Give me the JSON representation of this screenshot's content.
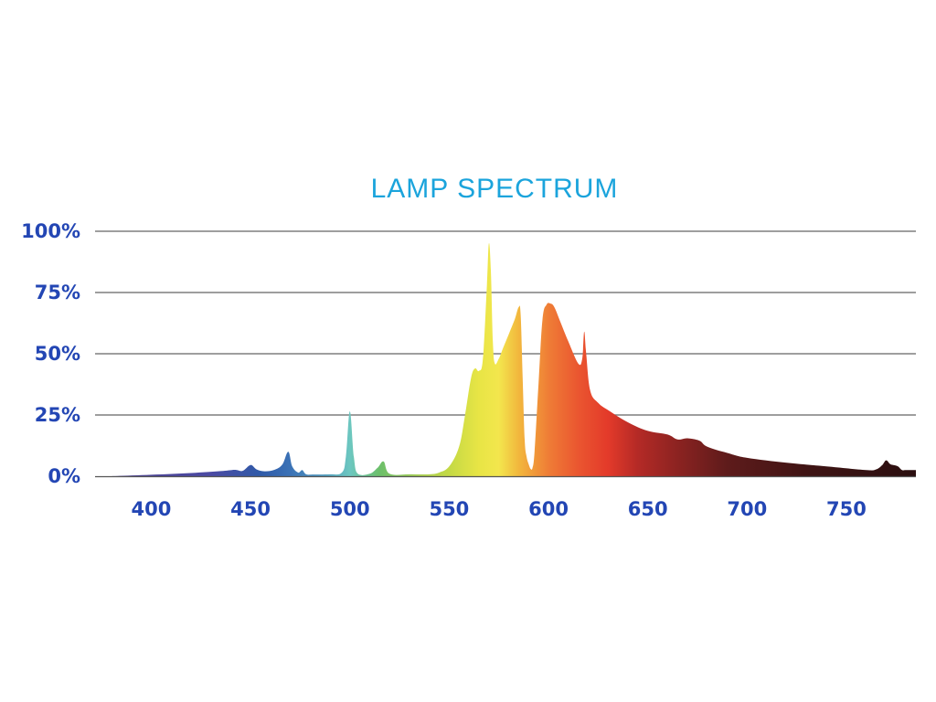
{
  "chart_data": {
    "type": "area",
    "title": "LAMP SPECTRUM",
    "xlabel": "",
    "ylabel": "",
    "xlim": [
      380,
      785
    ],
    "ylim": [
      0,
      100
    ],
    "x_ticks": [
      400,
      450,
      500,
      550,
      600,
      650,
      700,
      750
    ],
    "x_tick_labels": [
      "400",
      "450",
      "500",
      "550",
      "600",
      "650",
      "700",
      "750"
    ],
    "y_ticks": [
      0,
      25,
      50,
      75,
      100
    ],
    "y_tick_labels": [
      "0%",
      "25%",
      "50%",
      "75%",
      "100%"
    ],
    "grid": true,
    "legend": "none",
    "fill": "wavelength-colored gradient",
    "series": [
      {
        "x": [
          380,
          400,
          420,
          435,
          442,
          446,
          450,
          453,
          457,
          462,
          466,
          469,
          471,
          474,
          476,
          478,
          482,
          490,
          496,
          498,
          500,
          502,
          504,
          510,
          514,
          517,
          520,
          530,
          540,
          545,
          550,
          555,
          558,
          561,
          563,
          565,
          567,
          569,
          570,
          571,
          572,
          573,
          575,
          577,
          580,
          583,
          585,
          586,
          587,
          588,
          589,
          590,
          591,
          592,
          593,
          595,
          597,
          599,
          601,
          603,
          606,
          610,
          615,
          617,
          618,
          619,
          621,
          625,
          630,
          640,
          650,
          660,
          665,
          670,
          676,
          680,
          690,
          700,
          720,
          740,
          760,
          765,
          768,
          770,
          772,
          774,
          776,
          778,
          780,
          785
        ],
        "y": [
          0,
          0.6,
          1.3,
          2.1,
          2.6,
          2.2,
          4.6,
          2.8,
          2.0,
          2.6,
          4.8,
          10.0,
          4.0,
          1.5,
          2.5,
          0.8,
          0.7,
          0.8,
          1.5,
          8.0,
          26.5,
          8.0,
          1.0,
          1.0,
          3.5,
          6.0,
          1.0,
          0.8,
          0.8,
          1.5,
          4.0,
          12.0,
          25.0,
          40.0,
          44.0,
          43.0,
          48.0,
          78.0,
          95.0,
          84.0,
          55.0,
          46.0,
          48.0,
          52.0,
          58.0,
          64.0,
          69.0,
          66.0,
          40.0,
          15.0,
          8.0,
          5.0,
          3.0,
          3.5,
          10.0,
          38.0,
          64.0,
          70.0,
          70.5,
          69.0,
          63.0,
          55.0,
          46.0,
          48.0,
          59.0,
          50.0,
          35.0,
          30.0,
          27.0,
          22.0,
          18.5,
          17.0,
          15.0,
          15.5,
          14.5,
          12.0,
          9.5,
          7.5,
          5.5,
          4.0,
          2.5,
          2.8,
          4.5,
          6.5,
          5.0,
          4.5,
          4.0,
          2.5,
          2.5,
          2.5
        ]
      }
    ],
    "colors": {
      "title": "#1ba4dc",
      "tick_labels": "#2346b4",
      "grid": "#7f7f7f",
      "axis": "#555555"
    }
  }
}
